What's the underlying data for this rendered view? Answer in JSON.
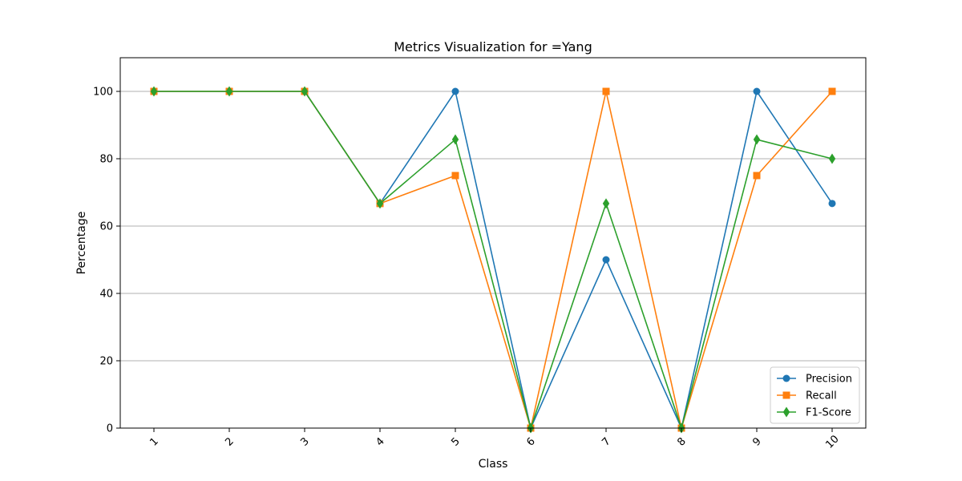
{
  "chart_data": {
    "type": "line",
    "title": "Metrics Visualization for =Yang",
    "xlabel": "Class",
    "ylabel": "Percentage",
    "categories": [
      "1",
      "2",
      "3",
      "4",
      "5",
      "6",
      "7",
      "8",
      "9",
      "10"
    ],
    "ylim": [
      0,
      110
    ],
    "yticks": [
      0,
      20,
      40,
      60,
      80,
      100
    ],
    "grid": "y-axis",
    "legend_position": "bottom-right",
    "series": [
      {
        "name": "Precision",
        "color": "#1f77b4",
        "marker": "circle",
        "values": [
          100,
          100,
          100,
          66.7,
          100,
          0,
          50,
          0,
          100,
          66.7
        ]
      },
      {
        "name": "Recall",
        "color": "#ff7f0e",
        "marker": "square",
        "values": [
          100,
          100,
          100,
          66.7,
          75,
          0,
          100,
          0,
          75,
          100
        ]
      },
      {
        "name": "F1-Score",
        "color": "#2ca02c",
        "marker": "diamond",
        "values": [
          100,
          100,
          100,
          66.7,
          85.7,
          0,
          66.7,
          0,
          85.7,
          80
        ]
      }
    ]
  }
}
